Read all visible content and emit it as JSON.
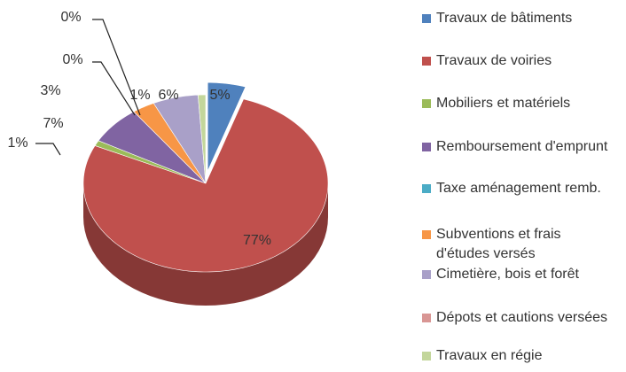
{
  "chart_data": {
    "type": "pie",
    "categories": [
      "Travaux de bâtiments",
      "Travaux de voiries",
      "Mobiliers et matériels",
      "Remboursement d'emprunt",
      "Taxe aménagement remb.",
      "Subventions et frais d'études versés",
      "Cimetière, bois et forêt",
      "Dépots et cautions versées",
      "Travaux en régie"
    ],
    "values": [
      5,
      77,
      1,
      7,
      0,
      3,
      6,
      0,
      1
    ],
    "value_labels": [
      "5%",
      "77%",
      "1%",
      "7%",
      "0%",
      "3%",
      "6%",
      "0%",
      "1%"
    ],
    "colors": [
      "#4f81bd",
      "#c0504d",
      "#9bbb59",
      "#8064a2",
      "#4bacc6",
      "#f79646",
      "#a9a0c8",
      "#d99694",
      "#c3d69b"
    ],
    "legend": "right"
  }
}
